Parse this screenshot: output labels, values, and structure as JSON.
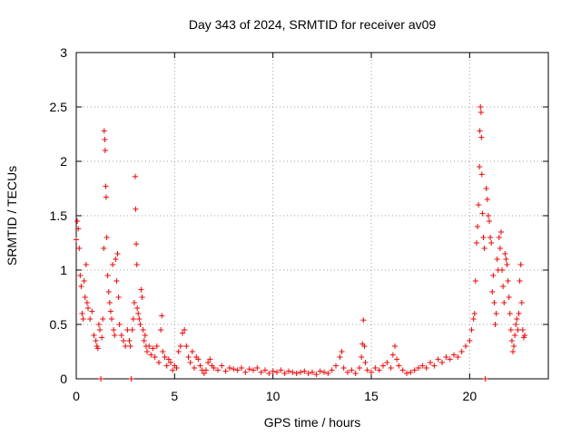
{
  "chart_data": {
    "type": "scatter",
    "title": "Day 343 of 2024, SRMTID for receiver av09",
    "xlabel": "GPS time / hours",
    "ylabel": "SRMTID / TECUs",
    "xlim": [
      0,
      24
    ],
    "ylim": [
      0,
      3
    ],
    "xticks": [
      0,
      5,
      10,
      15,
      20
    ],
    "yticks": [
      0,
      0.5,
      1,
      1.5,
      2,
      2.5,
      3
    ],
    "xtick_labels": [
      "0",
      "5",
      "10",
      "15",
      "20"
    ],
    "ytick_labels": [
      "0",
      "0.5",
      "1",
      "1.5",
      "2",
      "2.5",
      "3"
    ],
    "grid": true,
    "marker": "+",
    "color": "#ff0000",
    "series": [
      {
        "name": "SRMTID",
        "points": [
          [
            0.0,
            1.28
          ],
          [
            0.05,
            1.45
          ],
          [
            0.1,
            1.38
          ],
          [
            0.15,
            1.2
          ],
          [
            0.2,
            0.95
          ],
          [
            0.25,
            0.85
          ],
          [
            0.3,
            0.6
          ],
          [
            0.35,
            0.55
          ],
          [
            0.4,
            0.9
          ],
          [
            0.45,
            0.75
          ],
          [
            0.5,
            1.05
          ],
          [
            0.55,
            0.7
          ],
          [
            0.6,
            0.65
          ],
          [
            0.7,
            0.55
          ],
          [
            0.8,
            0.62
          ],
          [
            0.9,
            0.4
          ],
          [
            1.0,
            0.35
          ],
          [
            1.05,
            0.3
          ],
          [
            1.1,
            0.28
          ],
          [
            1.15,
            0.5
          ],
          [
            1.2,
            0.45
          ],
          [
            1.25,
            0.0
          ],
          [
            1.3,
            0.38
          ],
          [
            1.35,
            0.55
          ],
          [
            1.4,
            1.2
          ],
          [
            1.42,
            2.28
          ],
          [
            1.45,
            2.2
          ],
          [
            1.47,
            2.1
          ],
          [
            1.5,
            1.77
          ],
          [
            1.52,
            1.67
          ],
          [
            1.55,
            1.3
          ],
          [
            1.6,
            0.95
          ],
          [
            1.65,
            0.8
          ],
          [
            1.7,
            0.7
          ],
          [
            1.75,
            0.62
          ],
          [
            1.8,
            0.55
          ],
          [
            1.85,
            1.05
          ],
          [
            1.9,
            0.45
          ],
          [
            1.95,
            0.4
          ],
          [
            2.0,
            1.1
          ],
          [
            2.05,
            0.9
          ],
          [
            2.1,
            1.15
          ],
          [
            2.15,
            0.75
          ],
          [
            2.2,
            0.5
          ],
          [
            2.3,
            0.4
          ],
          [
            2.4,
            0.35
          ],
          [
            2.5,
            0.3
          ],
          [
            2.6,
            0.45
          ],
          [
            2.7,
            0.35
          ],
          [
            2.75,
            0.3
          ],
          [
            2.8,
            0.0
          ],
          [
            2.85,
            0.45
          ],
          [
            2.9,
            0.55
          ],
          [
            2.95,
            0.7
          ],
          [
            3.0,
            1.86
          ],
          [
            3.02,
            1.56
          ],
          [
            3.05,
            1.24
          ],
          [
            3.08,
            1.05
          ],
          [
            3.1,
            0.65
          ],
          [
            3.15,
            0.6
          ],
          [
            3.2,
            0.55
          ],
          [
            3.25,
            0.5
          ],
          [
            3.3,
            0.82
          ],
          [
            3.35,
            0.75
          ],
          [
            3.4,
            0.45
          ],
          [
            3.45,
            0.35
          ],
          [
            3.5,
            0.4
          ],
          [
            3.55,
            0.3
          ],
          [
            3.6,
            0.25
          ],
          [
            3.7,
            0.3
          ],
          [
            3.8,
            0.22
          ],
          [
            3.9,
            0.28
          ],
          [
            4.0,
            0.2
          ],
          [
            4.1,
            0.3
          ],
          [
            4.2,
            0.15
          ],
          [
            4.3,
            0.45
          ],
          [
            4.35,
            0.58
          ],
          [
            4.4,
            0.25
          ],
          [
            4.5,
            0.2
          ],
          [
            4.6,
            0.12
          ],
          [
            4.7,
            0.18
          ],
          [
            4.8,
            0.15
          ],
          [
            4.9,
            0.08
          ],
          [
            5.0,
            0.12
          ],
          [
            5.1,
            0.1
          ],
          [
            5.2,
            0.25
          ],
          [
            5.3,
            0.3
          ],
          [
            5.4,
            0.42
          ],
          [
            5.5,
            0.45
          ],
          [
            5.6,
            0.3
          ],
          [
            5.7,
            0.2
          ],
          [
            5.8,
            0.15
          ],
          [
            5.9,
            0.25
          ],
          [
            6.0,
            0.1
          ],
          [
            6.1,
            0.2
          ],
          [
            6.2,
            0.18
          ],
          [
            6.3,
            0.12
          ],
          [
            6.4,
            0.08
          ],
          [
            6.5,
            0.05
          ],
          [
            6.6,
            0.08
          ],
          [
            6.7,
            0.15
          ],
          [
            6.8,
            0.18
          ],
          [
            6.9,
            0.12
          ],
          [
            7.0,
            0.1
          ],
          [
            7.2,
            0.08
          ],
          [
            7.4,
            0.12
          ],
          [
            7.6,
            0.07
          ],
          [
            7.8,
            0.1
          ],
          [
            8.0,
            0.09
          ],
          [
            8.2,
            0.08
          ],
          [
            8.4,
            0.1
          ],
          [
            8.6,
            0.06
          ],
          [
            8.8,
            0.09
          ],
          [
            9.0,
            0.08
          ],
          [
            9.2,
            0.1
          ],
          [
            9.4,
            0.06
          ],
          [
            9.6,
            0.08
          ],
          [
            9.8,
            0.05
          ],
          [
            10.0,
            0.07
          ],
          [
            10.2,
            0.06
          ],
          [
            10.4,
            0.08
          ],
          [
            10.6,
            0.05
          ],
          [
            10.8,
            0.07
          ],
          [
            11.0,
            0.06
          ],
          [
            11.2,
            0.05
          ],
          [
            11.4,
            0.06
          ],
          [
            11.6,
            0.07
          ],
          [
            11.8,
            0.05
          ],
          [
            12.0,
            0.06
          ],
          [
            12.2,
            0.04
          ],
          [
            12.4,
            0.07
          ],
          [
            12.6,
            0.06
          ],
          [
            12.8,
            0.05
          ],
          [
            13.0,
            0.08
          ],
          [
            13.2,
            0.12
          ],
          [
            13.4,
            0.2
          ],
          [
            13.5,
            0.25
          ],
          [
            13.6,
            0.1
          ],
          [
            13.8,
            0.06
          ],
          [
            14.0,
            0.08
          ],
          [
            14.2,
            0.05
          ],
          [
            14.4,
            0.1
          ],
          [
            14.5,
            0.2
          ],
          [
            14.55,
            0.32
          ],
          [
            14.6,
            0.54
          ],
          [
            14.65,
            0.3
          ],
          [
            14.7,
            0.15
          ],
          [
            14.8,
            0.08
          ],
          [
            15.0,
            0.06
          ],
          [
            15.2,
            0.1
          ],
          [
            15.4,
            0.08
          ],
          [
            15.6,
            0.12
          ],
          [
            15.8,
            0.15
          ],
          [
            16.0,
            0.1
          ],
          [
            16.1,
            0.22
          ],
          [
            16.2,
            0.3
          ],
          [
            16.3,
            0.18
          ],
          [
            16.4,
            0.12
          ],
          [
            16.6,
            0.08
          ],
          [
            16.8,
            0.05
          ],
          [
            17.0,
            0.06
          ],
          [
            17.2,
            0.08
          ],
          [
            17.4,
            0.1
          ],
          [
            17.6,
            0.12
          ],
          [
            17.8,
            0.1
          ],
          [
            18.0,
            0.15
          ],
          [
            18.2,
            0.12
          ],
          [
            18.4,
            0.18
          ],
          [
            18.6,
            0.15
          ],
          [
            18.8,
            0.2
          ],
          [
            19.0,
            0.18
          ],
          [
            19.2,
            0.22
          ],
          [
            19.4,
            0.2
          ],
          [
            19.6,
            0.25
          ],
          [
            19.8,
            0.3
          ],
          [
            20.0,
            0.35
          ],
          [
            20.1,
            0.45
          ],
          [
            20.2,
            0.55
          ],
          [
            20.25,
            0.6
          ],
          [
            20.3,
            0.9
          ],
          [
            20.35,
            1.25
          ],
          [
            20.4,
            1.4
          ],
          [
            20.45,
            1.6
          ],
          [
            20.5,
            1.95
          ],
          [
            20.52,
            2.28
          ],
          [
            20.55,
            2.5
          ],
          [
            20.58,
            2.45
          ],
          [
            20.6,
            2.22
          ],
          [
            20.62,
            1.88
          ],
          [
            20.65,
            1.52
          ],
          [
            20.7,
            1.3
          ],
          [
            20.75,
            1.2
          ],
          [
            20.8,
            0.0
          ],
          [
            20.85,
            1.75
          ],
          [
            20.9,
            1.65
          ],
          [
            20.95,
            1.5
          ],
          [
            21.0,
            1.45
          ],
          [
            21.05,
            1.3
          ],
          [
            21.1,
            1.25
          ],
          [
            21.15,
            0.8
          ],
          [
            21.2,
            0.95
          ],
          [
            21.25,
            0.7
          ],
          [
            21.3,
            0.5
          ],
          [
            21.35,
            0.6
          ],
          [
            21.4,
            1.1
          ],
          [
            21.45,
            1.0
          ],
          [
            21.5,
            1.3
          ],
          [
            21.55,
            1.2
          ],
          [
            21.6,
            1.35
          ],
          [
            21.65,
            1.0
          ],
          [
            21.7,
            0.85
          ],
          [
            21.75,
            0.7
          ],
          [
            21.8,
            1.15
          ],
          [
            21.85,
            1.1
          ],
          [
            21.9,
            1.05
          ],
          [
            21.95,
            0.9
          ],
          [
            22.0,
            0.75
          ],
          [
            22.05,
            0.6
          ],
          [
            22.1,
            0.45
          ],
          [
            22.15,
            0.35
          ],
          [
            22.2,
            0.25
          ],
          [
            22.25,
            0.3
          ],
          [
            22.3,
            0.4
          ],
          [
            22.35,
            0.5
          ],
          [
            22.4,
            0.55
          ],
          [
            22.45,
            0.45
          ],
          [
            22.5,
            0.6
          ],
          [
            22.55,
            0.9
          ],
          [
            22.6,
            1.05
          ],
          [
            22.65,
            0.7
          ],
          [
            22.7,
            0.45
          ],
          [
            22.75,
            0.38
          ],
          [
            22.8,
            0.4
          ]
        ]
      }
    ]
  }
}
